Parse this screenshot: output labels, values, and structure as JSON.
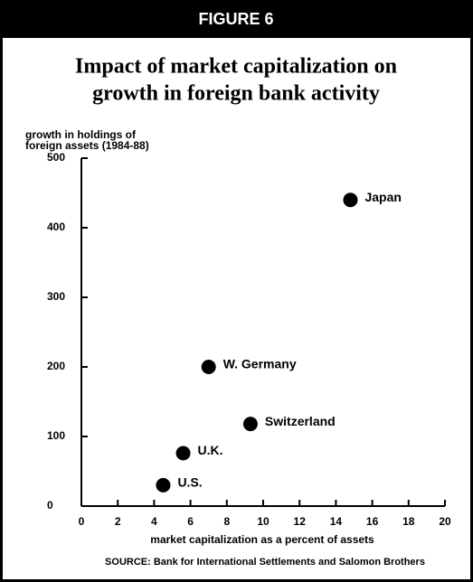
{
  "chart_data": {
    "type": "scatter",
    "figure_label": "FIGURE 6",
    "title": [
      "Impact of market capitalization on",
      "growth in foreign bank activity"
    ],
    "ylabel": [
      "growth in holdings of",
      "foreign assets (1984-88)"
    ],
    "xlabel": "market capitalization as a percent of assets",
    "source": "SOURCE: Bank for International Settlements and Salomon Brothers",
    "x": [
      14.8,
      7.0,
      9.3,
      5.6,
      4.5
    ],
    "values": [
      440,
      200,
      118,
      76,
      30
    ],
    "point_labels": [
      "Japan",
      "W. Germany",
      "Switzerland",
      "U.K.",
      "U.S."
    ],
    "color": "#000000",
    "xlim": [
      0,
      20
    ],
    "xticks": [
      0,
      2,
      4,
      6,
      8,
      10,
      12,
      14,
      16,
      18,
      20
    ],
    "ylim": [
      0,
      500
    ],
    "yticks": [
      0,
      100,
      200,
      300,
      400,
      500
    ]
  }
}
